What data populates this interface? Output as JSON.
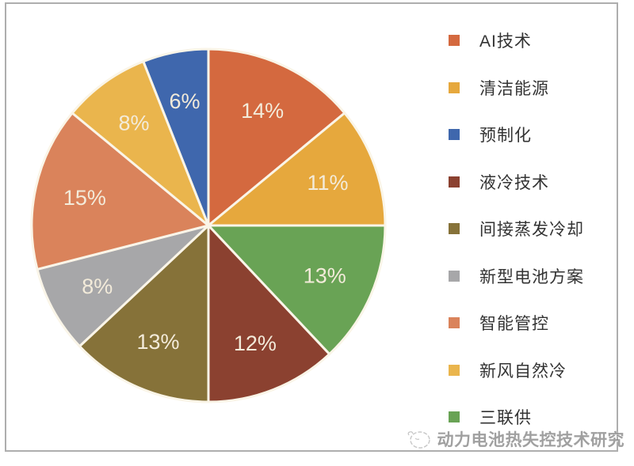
{
  "chart_data": {
    "type": "pie",
    "title": "",
    "start_angle_deg": 0,
    "direction": "clockwise",
    "slices": [
      {
        "label": "AI技术",
        "value": 14,
        "display": "14%",
        "color": "#D4693F"
      },
      {
        "label": "清洁能源",
        "value": 11,
        "display": "11%",
        "color": "#E6A83D"
      },
      {
        "label": "三联供",
        "value": 13,
        "display": "13%",
        "color": "#69A355"
      },
      {
        "label": "液冷技术",
        "value": 12,
        "display": "12%",
        "color": "#8B4130"
      },
      {
        "label": "间接蒸发冷却",
        "value": 13,
        "display": "13%",
        "color": "#867239"
      },
      {
        "label": "新型电池方案",
        "value": 8,
        "display": "8%",
        "color": "#A7A7A9"
      },
      {
        "label": "智能管控",
        "value": 15,
        "display": "15%",
        "color": "#DA835B"
      },
      {
        "label": "新风自然冷",
        "value": 8,
        "display": "8%",
        "color": "#EAB54D"
      },
      {
        "label": "预制化",
        "value": 6,
        "display": "6%",
        "color": "#3F67AD"
      }
    ],
    "legend": {
      "position": "right",
      "items": [
        "AI技术",
        "清洁能源",
        "预制化",
        "液冷技术",
        "间接蒸发冷却",
        "新型电池方案",
        "智能管控",
        "新风自然冷",
        "三联供"
      ]
    },
    "slice_label_color": "#F3EBDA",
    "slice_separator_color": "#FAF5E8",
    "frame_border_color": "#AEAEAE"
  },
  "watermark": {
    "text": "动力电池热失控技术研究",
    "icon": "sketch-logo"
  }
}
